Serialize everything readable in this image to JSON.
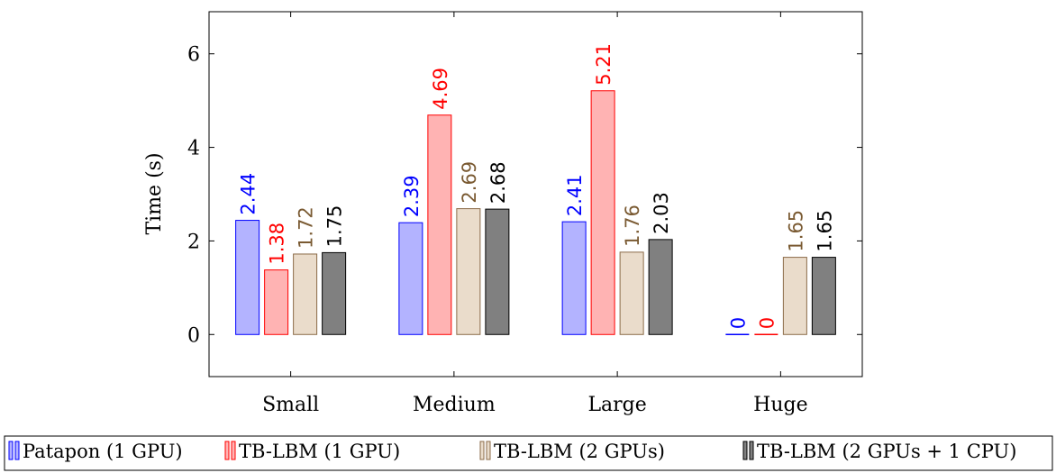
{
  "chart_data": {
    "type": "bar",
    "ylabel": "Time (s)",
    "xlabel": "",
    "ylim": [
      -0.9,
      6.9
    ],
    "yticks": [
      0,
      2,
      4,
      6
    ],
    "grid": false,
    "legend_position": "bottom",
    "categories": [
      "Small",
      "Medium",
      "Large",
      "Huge"
    ],
    "series": [
      {
        "name": "Patapon (1 GPU)",
        "values": [
          2.44,
          2.39,
          2.41,
          0
        ],
        "labels": [
          "2.44",
          "2.39",
          "2.41",
          "0"
        ],
        "color": "#0000ff",
        "fill": "#b3b3ff",
        "label_color": "#0000ff"
      },
      {
        "name": "TB-LBM (1 GPU)",
        "values": [
          1.38,
          4.69,
          5.21,
          0
        ],
        "labels": [
          "1.38",
          "4.69",
          "5.21",
          "0"
        ],
        "color": "#ff0000",
        "fill": "#ffb3b3",
        "label_color": "#ff0000"
      },
      {
        "name": "TB-LBM (2 GPUs)",
        "values": [
          1.72,
          2.69,
          1.76,
          1.65
        ],
        "labels": [
          "1.72",
          "2.69",
          "1.76",
          "1.65"
        ],
        "color": "#8b6b48",
        "fill": "#eadccb",
        "label_color": "#7a5a32"
      },
      {
        "name": "TB-LBM (2 GPUs + 1 CPU)",
        "values": [
          1.75,
          2.68,
          2.03,
          1.65
        ],
        "labels": [
          "1.75",
          "2.68",
          "2.03",
          "1.65"
        ],
        "color": "#000000",
        "fill": "#808080",
        "label_color": "#000000"
      }
    ]
  }
}
